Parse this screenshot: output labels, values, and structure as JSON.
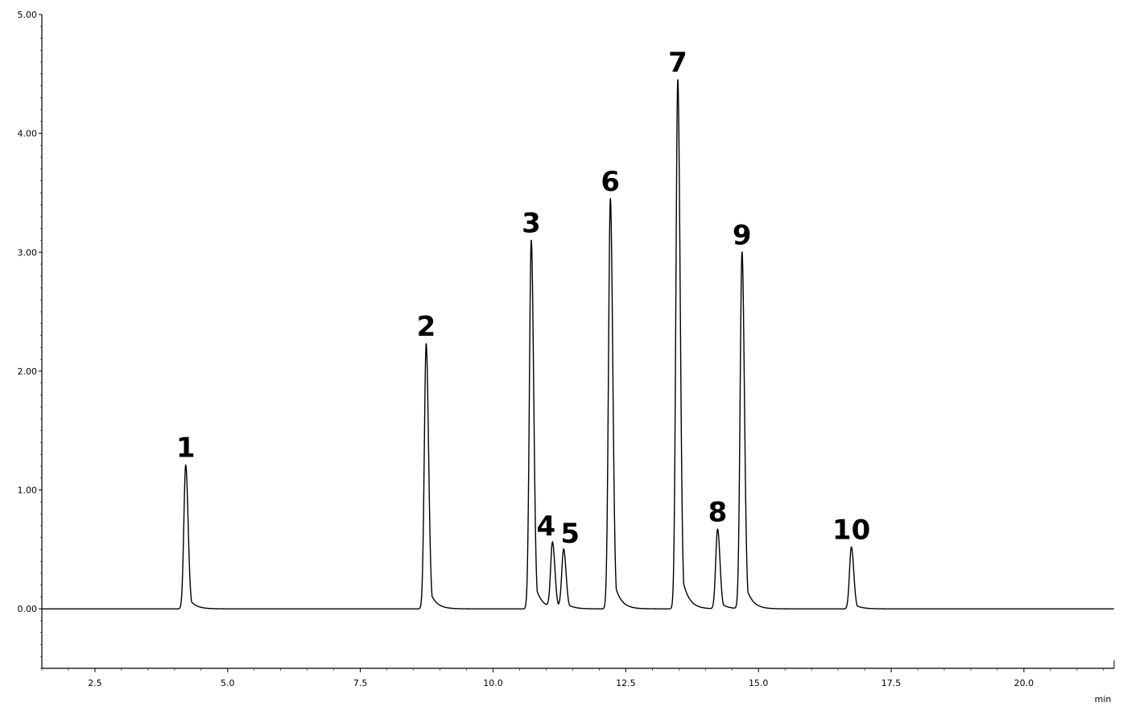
{
  "chart_data": {
    "type": "line",
    "title": "",
    "xlabel": "",
    "ylabel": "",
    "x_unit": "min",
    "xlim": [
      1.5,
      21.7
    ],
    "ylim": [
      -0.5,
      5.0
    ],
    "x_ticks": [
      2.5,
      5.0,
      7.5,
      10.0,
      12.5,
      15.0,
      17.5,
      20.0
    ],
    "x_tick_labels": [
      "2.5",
      "5.0",
      "7.5",
      "10.0",
      "12.5",
      "15.0",
      "17.5",
      "20.0"
    ],
    "y_ticks": [
      0.0,
      1.0,
      2.0,
      3.0,
      4.0,
      5.0
    ],
    "y_tick_labels": [
      "0.00",
      "1.00",
      "2.00",
      "3.00",
      "4.00",
      "5.00"
    ],
    "grid": false,
    "legend": "none",
    "line_color": "#000000",
    "peaks": [
      {
        "label": "1",
        "rt": 4.21,
        "height": 1.21
      },
      {
        "label": "2",
        "rt": 8.74,
        "height": 2.23
      },
      {
        "label": "3",
        "rt": 10.72,
        "height": 3.1
      },
      {
        "label": "4",
        "rt": 11.12,
        "height": 0.55
      },
      {
        "label": "5",
        "rt": 11.33,
        "height": 0.49
      },
      {
        "label": "6",
        "rt": 12.21,
        "height": 3.45
      },
      {
        "label": "7",
        "rt": 13.48,
        "height": 4.45
      },
      {
        "label": "8",
        "rt": 14.23,
        "height": 0.67
      },
      {
        "label": "9",
        "rt": 14.69,
        "height": 3.0
      },
      {
        "label": "10",
        "rt": 16.75,
        "height": 0.52
      }
    ]
  }
}
